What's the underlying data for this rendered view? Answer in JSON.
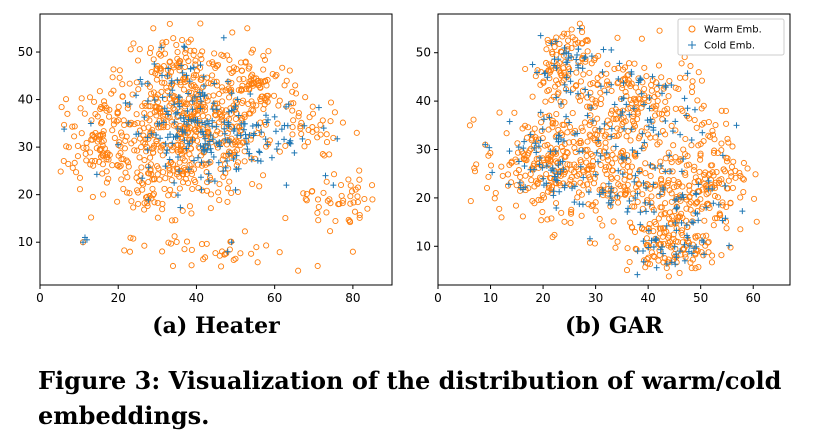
{
  "colors": {
    "warm": "#ff7f0e",
    "cold": "#1f77b4"
  },
  "legend": {
    "warm_label": "Warm Emb.",
    "cold_label": "Cold Emb."
  },
  "captions": {
    "a": "(a) Heater",
    "b": "(b) GAR",
    "figure": "Figure 3: Visualization of the distribution of warm/cold embeddings."
  },
  "chart_data": [
    {
      "type": "scatter",
      "title": "(a) Heater",
      "xlim": [
        0,
        90
      ],
      "ylim": [
        1,
        58
      ],
      "xticks": [
        0,
        20,
        40,
        60,
        80
      ],
      "yticks": [
        10,
        20,
        30,
        40,
        50
      ],
      "legend": false,
      "series": [
        {
          "name": "Warm Emb.",
          "marker": "circle",
          "clusters": [
            {
              "cx": 38,
              "cy": 33,
              "sx": 11,
              "sy": 7,
              "n": 520
            },
            {
              "cx": 35,
              "cy": 46,
              "sx": 7,
              "sy": 4,
              "n": 90
            },
            {
              "cx": 55,
              "cy": 43,
              "sx": 6,
              "sy": 4,
              "n": 80
            },
            {
              "cx": 16,
              "cy": 33,
              "sx": 4,
              "sy": 5,
              "n": 70
            },
            {
              "cx": 68,
              "cy": 34,
              "sx": 4,
              "sy": 3,
              "n": 35
            },
            {
              "cx": 76,
              "cy": 19,
              "sx": 4,
              "sy": 3,
              "n": 45
            },
            {
              "cx": 44,
              "cy": 8,
              "sx": 10,
              "sy": 2,
              "n": 35
            },
            {
              "cx": 30,
              "cy": 20,
              "sx": 6,
              "sy": 3,
              "n": 35
            },
            {
              "cx": 12,
              "cy": 30,
              "sx": 3,
              "sy": 4,
              "n": 25
            }
          ],
          "extra_points": [
            [
              41,
              56
            ],
            [
              53,
              55
            ],
            [
              85,
              19
            ],
            [
              11,
              10
            ],
            [
              66,
              4
            ],
            [
              23,
              8
            ],
            [
              34,
              5
            ],
            [
              71,
              5
            ],
            [
              80,
              8
            ],
            [
              81,
              33
            ],
            [
              7,
              37
            ]
          ]
        },
        {
          "name": "Cold Emb.",
          "marker": "plus",
          "clusters": [
            {
              "cx": 40,
              "cy": 33,
              "sx": 9,
              "sy": 5,
              "n": 150
            },
            {
              "cx": 52,
              "cy": 32,
              "sx": 5,
              "sy": 3,
              "n": 40
            },
            {
              "cx": 38,
              "cy": 44,
              "sx": 5,
              "sy": 3,
              "n": 25
            },
            {
              "cx": 65,
              "cy": 33,
              "sx": 4,
              "sy": 4,
              "n": 15
            }
          ],
          "extra_points": [
            [
              11,
              10
            ],
            [
              12,
              10.5
            ],
            [
              11.5,
              11
            ],
            [
              37,
              51
            ],
            [
              31,
              51
            ],
            [
              49,
              10
            ],
            [
              48,
              8
            ],
            [
              63,
              22
            ],
            [
              50,
              21
            ],
            [
              73,
              24
            ],
            [
              75,
              22
            ],
            [
              47,
              53
            ]
          ]
        }
      ]
    },
    {
      "type": "scatter",
      "title": "(b) GAR",
      "xlim": [
        0,
        67
      ],
      "ylim": [
        2,
        58
      ],
      "xticks": [
        0,
        10,
        20,
        30,
        40,
        50,
        60
      ],
      "yticks": [
        10,
        20,
        30,
        40,
        50
      ],
      "legend": true,
      "legend_position": "top-right",
      "series": [
        {
          "name": "Warm Emb.",
          "marker": "circle",
          "clusters": [
            {
              "cx": 24,
              "cy": 47,
              "sx": 3,
              "sy": 5,
              "n": 110
            },
            {
              "cx": 37,
              "cy": 40,
              "sx": 6,
              "sy": 5,
              "n": 180
            },
            {
              "cx": 19,
              "cy": 27,
              "sx": 5,
              "sy": 5,
              "n": 170
            },
            {
              "cx": 32,
              "cy": 25,
              "sx": 6,
              "sy": 6,
              "n": 200
            },
            {
              "cx": 47,
              "cy": 20,
              "sx": 5,
              "sy": 6,
              "n": 170
            },
            {
              "cx": 44,
              "cy": 10,
              "sx": 4,
              "sy": 3,
              "n": 90
            },
            {
              "cx": 52,
              "cy": 27,
              "sx": 3,
              "sy": 5,
              "n": 70
            }
          ],
          "extra_points": [
            [
              27,
              56
            ],
            [
              9,
              31
            ],
            [
              58,
              24
            ],
            [
              11,
              21
            ],
            [
              54,
              38
            ]
          ]
        },
        {
          "name": "Cold Emb.",
          "marker": "plus",
          "clusters": [
            {
              "cx": 24,
              "cy": 47,
              "sx": 3,
              "sy": 5,
              "n": 40
            },
            {
              "cx": 37,
              "cy": 40,
              "sx": 6,
              "sy": 5,
              "n": 60
            },
            {
              "cx": 19,
              "cy": 27,
              "sx": 5,
              "sy": 5,
              "n": 55
            },
            {
              "cx": 32,
              "cy": 25,
              "sx": 6,
              "sy": 6,
              "n": 60
            },
            {
              "cx": 47,
              "cy": 20,
              "sx": 5,
              "sy": 6,
              "n": 55
            },
            {
              "cx": 44,
              "cy": 10,
              "sx": 4,
              "sy": 3,
              "n": 30
            }
          ],
          "extra_points": [
            [
              27,
              55
            ],
            [
              9,
              31
            ],
            [
              38,
              9
            ],
            [
              47,
              7
            ]
          ]
        }
      ]
    }
  ]
}
